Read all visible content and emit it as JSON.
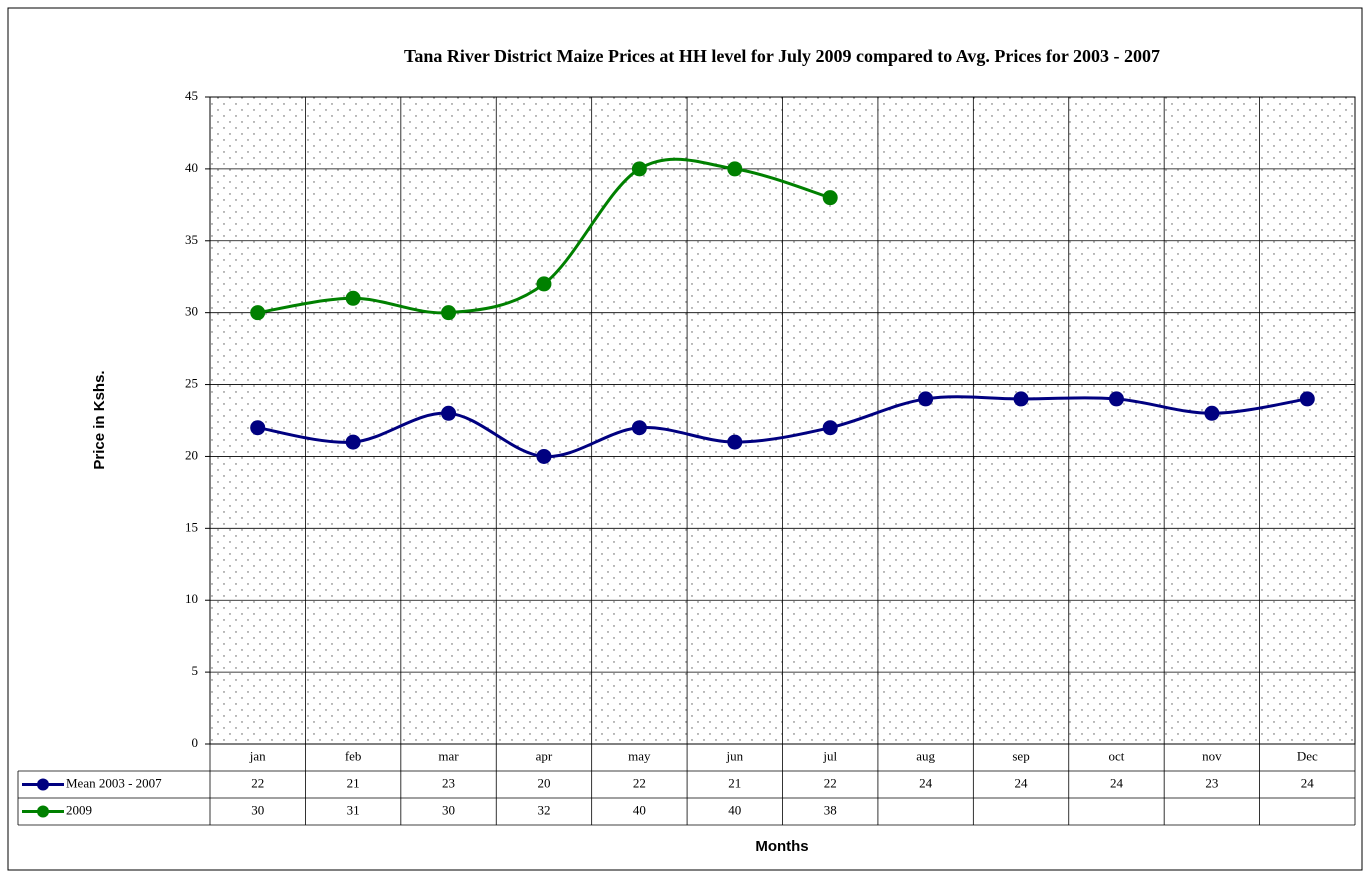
{
  "chart_data": {
    "type": "line",
    "title": "Tana River District Maize Prices at HH level for July 2009 compared to Avg. Prices for 2003 - 2007",
    "x_label": "Months",
    "y_label": "Price in Kshs.",
    "categories": [
      "jan",
      "feb",
      "mar",
      "apr",
      "may",
      "jun",
      "jul",
      "aug",
      "sep",
      "oct",
      "nov",
      "Dec"
    ],
    "series": [
      {
        "name": "Mean 2003 - 2007",
        "color": "#000080",
        "values": [
          22,
          21,
          23,
          20,
          22,
          21,
          22,
          24,
          24,
          24,
          23,
          24
        ]
      },
      {
        "name": "2009",
        "color": "#008000",
        "values": [
          30,
          31,
          30,
          32,
          40,
          40,
          38,
          null,
          null,
          null,
          null,
          null
        ]
      }
    ],
    "ylim": [
      0,
      45
    ],
    "yticks": [
      0,
      5,
      10,
      15,
      20,
      25,
      30,
      35,
      40,
      45
    ],
    "grid": true,
    "smooth": true,
    "data_table": true
  }
}
